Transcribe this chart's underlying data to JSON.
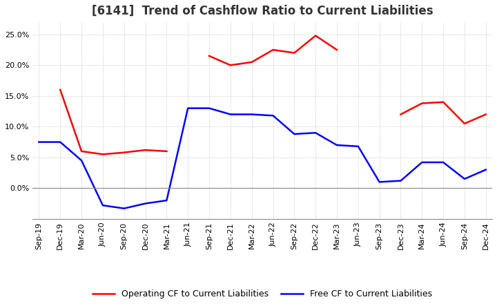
{
  "title": "[6141]  Trend of Cashflow Ratio to Current Liabilities",
  "xlabels": [
    "Sep-19",
    "Dec-19",
    "Mar-20",
    "Jun-20",
    "Sep-20",
    "Dec-20",
    "Mar-21",
    "Jun-21",
    "Sep-21",
    "Dec-21",
    "Mar-22",
    "Jun-22",
    "Sep-22",
    "Dec-22",
    "Mar-23",
    "Jun-23",
    "Sep-23",
    "Dec-23",
    "Mar-24",
    "Jun-24",
    "Sep-24",
    "Dec-24"
  ],
  "operating_cf": [
    null,
    16.0,
    6.0,
    5.5,
    5.8,
    6.2,
    6.0,
    null,
    21.5,
    20.0,
    20.5,
    22.5,
    22.0,
    24.8,
    22.5,
    null,
    null,
    12.0,
    13.8,
    14.0,
    10.5,
    12.0
  ],
  "free_cf": [
    7.5,
    7.5,
    4.5,
    -2.8,
    -3.3,
    -2.5,
    -2.0,
    13.0,
    13.0,
    12.0,
    12.0,
    11.8,
    8.8,
    9.0,
    7.0,
    6.8,
    1.0,
    1.2,
    4.2,
    4.2,
    1.5,
    3.0
  ],
  "ylim": [
    -5.0,
    27.0
  ],
  "yticks": [
    0,
    5,
    10,
    15,
    20,
    25
  ],
  "operating_color": "#ff0000",
  "free_color": "#0000ff",
  "background_color": "#ffffff",
  "grid_color": "#aaaaaa",
  "title_fontsize": 12,
  "tick_fontsize": 8,
  "legend_fontsize": 9
}
